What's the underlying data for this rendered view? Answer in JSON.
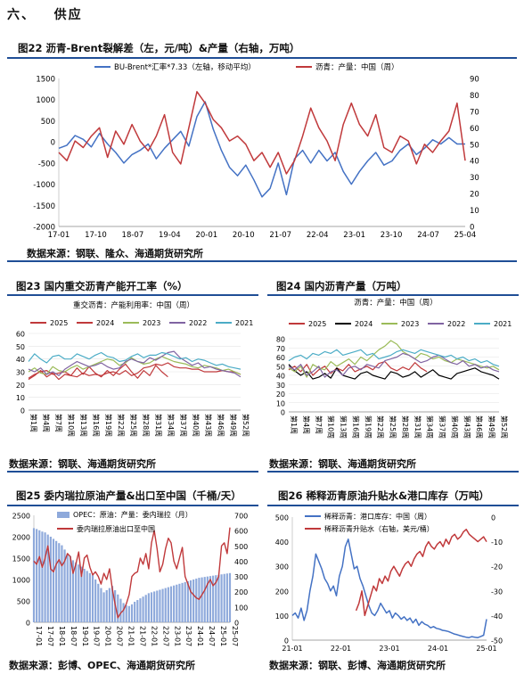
{
  "section": {
    "number": "六、",
    "title": "供应"
  },
  "figures": [
    {
      "id": "fig22",
      "title": "图22  沥青-Brent裂解差（左，元/吨）&产量（右轴，万吨）",
      "source": "数据来源：钢联、隆众、海通期货研究所"
    },
    {
      "id": "fig23",
      "title": "图23  国内重交沥青产能开工率（%）",
      "source": "数据来源：钢联、海通期货研究所"
    },
    {
      "id": "fig24",
      "title": "图24  国内沥青产量（万吨）",
      "source": "数据来源：钢联、海通期货研究所"
    },
    {
      "id": "fig25",
      "title": "图25  委内瑞拉原油产量&出口至中国（千桶/天）",
      "source": "数据来源：彭博、OPEC、海通期货研究所"
    },
    {
      "id": "fig26",
      "title": "图26  稀释沥青原油升贴水&港口库存（万吨）",
      "source": "数据来源：钢联、彭博、海通期货研究所"
    }
  ],
  "colors": {
    "blue": "#4472c4",
    "red": "#c0393b",
    "green": "#9bbb59",
    "black": "#000000",
    "purple": "#8064a2",
    "cyan": "#4bacc6",
    "bar": "#8ea9db",
    "rule": "#1f4e96"
  },
  "chart_data": [
    {
      "id": "fig22",
      "type": "line",
      "x_ticks": [
        "17-01",
        "17-10",
        "18-07",
        "19-04",
        "20-01",
        "20-10",
        "21-07",
        "22-04",
        "23-01",
        "23-10",
        "24-07",
        "25-04"
      ],
      "y_left": {
        "min": -2000,
        "max": 1500,
        "ticks": [
          -2000,
          -1500,
          -1000,
          -500,
          0,
          500,
          1000,
          1500
        ]
      },
      "y_right": {
        "min": 0,
        "max": 90,
        "ticks": [
          0,
          10,
          20,
          30,
          40,
          50,
          60,
          70,
          80,
          90
        ]
      },
      "legend_placement": "top",
      "series": [
        {
          "name": "BU-Brent*汇率*7.33（左轴，移动平均）",
          "color": "#4472c4",
          "axis": "left",
          "values": [
            -150,
            -80,
            150,
            60,
            -120,
            200,
            -50,
            -250,
            -500,
            -300,
            -200,
            -50,
            -400,
            -150,
            50,
            250,
            -100,
            600,
            950,
            300,
            -200,
            -600,
            -800,
            -550,
            -900,
            -1300,
            -1100,
            -500,
            -1250,
            -400,
            -200,
            -500,
            -200,
            -450,
            -250,
            -700,
            -1000,
            -700,
            -450,
            -250,
            -550,
            -450,
            -200,
            -50,
            -300,
            -150,
            50,
            -50,
            100,
            -50,
            -50
          ]
        },
        {
          "name": "沥青：产量：中国（周）",
          "color": "#c0393b",
          "axis": "right",
          "values": [
            45,
            40,
            52,
            48,
            55,
            60,
            42,
            58,
            50,
            62,
            52,
            46,
            55,
            68,
            45,
            38,
            60,
            82,
            75,
            65,
            60,
            52,
            55,
            50,
            40,
            45,
            36,
            45,
            32,
            40,
            55,
            72,
            60,
            52,
            40,
            62,
            75,
            62,
            55,
            68,
            48,
            45,
            55,
            52,
            38,
            50,
            45,
            52,
            58,
            75,
            40
          ]
        }
      ]
    },
    {
      "id": "fig23",
      "type": "line",
      "subtitle": "重交沥青：产能利用率：中国（周）",
      "x_ticks": [
        "第1周",
        "第4周",
        "第7周",
        "第10周",
        "第13周",
        "第16周",
        "第19周",
        "第22周",
        "第25周",
        "第28周",
        "第31周",
        "第34周",
        "第37周",
        "第40周",
        "第43周",
        "第46周",
        "第49周",
        "第52周"
      ],
      "y": {
        "min": 0,
        "max": 60,
        "ticks": [
          0,
          10,
          20,
          30,
          40,
          50,
          60
        ]
      },
      "legend_placement": "top",
      "series": [
        {
          "name": "2025",
          "color": "#c0393b",
          "values": [
            25,
            28,
            30,
            31,
            28,
            29,
            30,
            27,
            33,
            28,
            34,
            29,
            26,
            31,
            27,
            32,
            36,
            30,
            25,
            31,
            27,
            35,
            30,
            26,
            null,
            null,
            null,
            null,
            null,
            null,
            null,
            null,
            null,
            null,
            null,
            null
          ]
        },
        {
          "name": "2024",
          "color": "#c0393b",
          "values": [
            24,
            27,
            31,
            26,
            29,
            24,
            28,
            27,
            26,
            29,
            27,
            28,
            27,
            29,
            30,
            28,
            31,
            27,
            29,
            33,
            34,
            36,
            35,
            37,
            34,
            33,
            33,
            32,
            32,
            30,
            30,
            30,
            31,
            30,
            30,
            28
          ]
        },
        {
          "name": "2023",
          "color": "#9bbb59",
          "values": [
            30,
            33,
            29,
            28,
            34,
            31,
            30,
            33,
            35,
            32,
            34,
            36,
            38,
            40,
            39,
            35,
            37,
            41,
            38,
            36,
            37,
            40,
            42,
            40,
            38,
            37,
            36,
            34,
            33,
            35,
            34,
            33,
            31,
            32,
            30,
            28
          ]
        },
        {
          "name": "2022",
          "color": "#8064a2",
          "values": [
            32,
            30,
            33,
            28,
            30,
            27,
            32,
            35,
            38,
            36,
            34,
            35,
            37,
            34,
            32,
            33,
            38,
            40,
            38,
            37,
            41,
            39,
            42,
            45,
            46,
            41,
            38,
            35,
            37,
            33,
            34,
            32,
            31,
            30,
            29,
            26
          ]
        },
        {
          "name": "2021",
          "color": "#4bacc6",
          "values": [
            38,
            44,
            40,
            37,
            42,
            43,
            40,
            40,
            44,
            42,
            40,
            43,
            45,
            42,
            41,
            38,
            39,
            42,
            44,
            41,
            43,
            43,
            45,
            44,
            42,
            40,
            41,
            38,
            40,
            39,
            37,
            35,
            36,
            34,
            33,
            32
          ]
        }
      ]
    },
    {
      "id": "fig24",
      "type": "line",
      "subtitle": "沥青：产量：中国（周）",
      "x_ticks": [
        "第1周",
        "第4周",
        "第7周",
        "第10周",
        "第13周",
        "第16周",
        "第19周",
        "第22周",
        "第25周",
        "第28周",
        "第31周",
        "第34周",
        "第37周",
        "第40周",
        "第43周",
        "第46周",
        "第49周",
        "第52周"
      ],
      "y": {
        "min": 0,
        "max": 80,
        "ticks": [
          0,
          10,
          20,
          30,
          40,
          50,
          60,
          70,
          80
        ]
      },
      "legend_placement": "top",
      "series": [
        {
          "name": "2025",
          "color": "#c0393b",
          "values": [
            46,
            50,
            44,
            52,
            40,
            46,
            50,
            42,
            48,
            45,
            52,
            44,
            47,
            50,
            46,
            53,
            55,
            48,
            45,
            49,
            46,
            54,
            48,
            44,
            null,
            null,
            null,
            null,
            null,
            null,
            null,
            null,
            null,
            null,
            null,
            null
          ]
        },
        {
          "name": "2024",
          "color": "#000000",
          "values": [
            52,
            45,
            40,
            44,
            36,
            38,
            42,
            37,
            48,
            40,
            38,
            36,
            42,
            44,
            40,
            38,
            36,
            44,
            42,
            38,
            40,
            44,
            38,
            42,
            46,
            40,
            38,
            36,
            42,
            44,
            46,
            48,
            44,
            42,
            40,
            36
          ]
        },
        {
          "name": "2023",
          "color": "#9bbb59",
          "values": [
            48,
            44,
            50,
            38,
            52,
            48,
            46,
            55,
            50,
            54,
            58,
            52,
            60,
            56,
            62,
            68,
            72,
            78,
            74,
            66,
            62,
            58,
            64,
            62,
            58,
            60,
            56,
            54,
            58,
            56,
            54,
            52,
            50,
            48,
            50,
            46
          ]
        },
        {
          "name": "2022",
          "color": "#8064a2",
          "values": [
            50,
            46,
            52,
            40,
            44,
            50,
            38,
            44,
            46,
            40,
            48,
            50,
            46,
            52,
            50,
            48,
            56,
            58,
            60,
            64,
            62,
            58,
            54,
            56,
            60,
            62,
            58,
            54,
            52,
            56,
            50,
            52,
            48,
            50,
            46,
            44
          ]
        },
        {
          "name": "2021",
          "color": "#4bacc6",
          "values": [
            56,
            60,
            62,
            58,
            64,
            62,
            66,
            64,
            68,
            62,
            64,
            66,
            68,
            62,
            64,
            58,
            60,
            62,
            66,
            68,
            66,
            64,
            68,
            66,
            64,
            62,
            60,
            62,
            58,
            60,
            56,
            58,
            54,
            56,
            52,
            50
          ]
        }
      ]
    },
    {
      "id": "fig25",
      "type": "bar",
      "x_ticks": [
        "17-01",
        "17-07",
        "18-01",
        "18-07",
        "19-01",
        "19-07",
        "20-01",
        "20-07",
        "21-01",
        "21-07",
        "22-01",
        "22-07",
        "23-01",
        "23-07",
        "24-01",
        "24-07",
        "25-01",
        "25-07"
      ],
      "y_left": {
        "min": 0,
        "max": 2500,
        "ticks": [
          0,
          500,
          1000,
          1500,
          2000,
          2500
        ]
      },
      "y_right": {
        "min": 0,
        "max": 700,
        "ticks": [
          0,
          100,
          200,
          300,
          400,
          500,
          600,
          700
        ]
      },
      "legend_placement": "top-left",
      "series": [
        {
          "name": "OPEC：原油：产量：委内瑞拉（月）",
          "color": "#8ea9db",
          "axis": "left",
          "kind": "bar",
          "values": [
            2200,
            2180,
            2150,
            2120,
            2100,
            2050,
            2000,
            1950,
            1900,
            1850,
            1800,
            1700,
            1600,
            1550,
            1450,
            1400,
            1350,
            1300,
            1250,
            1200,
            1150,
            1100,
            1000,
            900,
            800,
            700,
            750,
            800,
            850,
            750,
            650,
            550,
            450,
            400,
            380,
            420,
            480,
            520,
            560,
            600,
            640,
            680,
            700,
            720,
            740,
            760,
            780,
            800,
            820,
            840,
            860,
            880,
            900,
            920,
            940,
            960,
            980,
            1000,
            1020,
            1040,
            1050,
            1060,
            1070,
            1080,
            1090,
            1100,
            1110,
            1120,
            1130,
            1140,
            1150
          ]
        },
        {
          "name": "委内瑞拉原油出口至中国",
          "color": "#c0393b",
          "axis": "right",
          "kind": "line",
          "values": [
            400,
            380,
            430,
            360,
            420,
            500,
            350,
            330,
            380,
            410,
            370,
            400,
            450,
            430,
            320,
            380,
            460,
            300,
            420,
            440,
            360,
            310,
            330,
            300,
            250,
            320,
            280,
            350,
            220,
            120,
            30,
            60,
            80,
            120,
            180,
            300,
            320,
            330,
            420,
            380,
            450,
            350,
            520,
            600,
            480,
            330,
            380,
            480,
            550,
            520,
            400,
            350,
            420,
            490,
            300,
            250,
            200,
            180,
            160,
            150,
            180,
            210,
            250,
            280,
            240,
            260,
            300,
            500,
            520,
            450,
            620
          ]
        }
      ]
    },
    {
      "id": "fig26",
      "type": "line",
      "x_ticks": [
        "21-01",
        "22-01",
        "23-01",
        "24-01",
        "25-01"
      ],
      "y_left": {
        "min": 0,
        "max": 500,
        "ticks": [
          0,
          100,
          200,
          300,
          400,
          500
        ]
      },
      "y_right": {
        "min": -50,
        "max": 0,
        "ticks": [
          0,
          -10,
          -20,
          -30,
          -40,
          -50
        ]
      },
      "legend_placement": "top-left",
      "series": [
        {
          "name": "稀释沥青：港口库存：中国（周）",
          "color": "#4472c4",
          "axis": "left",
          "values": [
            100,
            110,
            90,
            130,
            80,
            120,
            200,
            260,
            350,
            320,
            290,
            250,
            230,
            200,
            220,
            180,
            260,
            300,
            380,
            410,
            350,
            290,
            300,
            250,
            220,
            180,
            140,
            110,
            100,
            120,
            150,
            130,
            110,
            120,
            90,
            110,
            100,
            85,
            95,
            80,
            90,
            70,
            85,
            60,
            75,
            65,
            60,
            50,
            55,
            48,
            45,
            40,
            38,
            35,
            30,
            25,
            22,
            18,
            15,
            12,
            10,
            14,
            12,
            10,
            15,
            20,
            85
          ]
        },
        {
          "name": "稀释沥青升贴水（右轴，美元/桶）",
          "color": "#c0393b",
          "axis": "right",
          "values": [
            null,
            null,
            null,
            null,
            null,
            null,
            null,
            null,
            null,
            null,
            null,
            null,
            null,
            null,
            null,
            null,
            null,
            null,
            null,
            null,
            null,
            null,
            -38,
            -35,
            -30,
            -40,
            -36,
            -32,
            -28,
            -30,
            -25,
            -27,
            -24,
            -26,
            -22,
            -20,
            -22,
            -24,
            -21,
            -19,
            -18,
            -20,
            -17,
            -15,
            -14,
            -16,
            -12,
            -10,
            -12,
            -13,
            -11,
            -10,
            -12,
            -9,
            -11,
            -8,
            -7,
            -9,
            -8,
            -6,
            -5,
            -7,
            -8,
            -9,
            -10,
            -9,
            -8,
            -10
          ]
        }
      ]
    }
  ]
}
